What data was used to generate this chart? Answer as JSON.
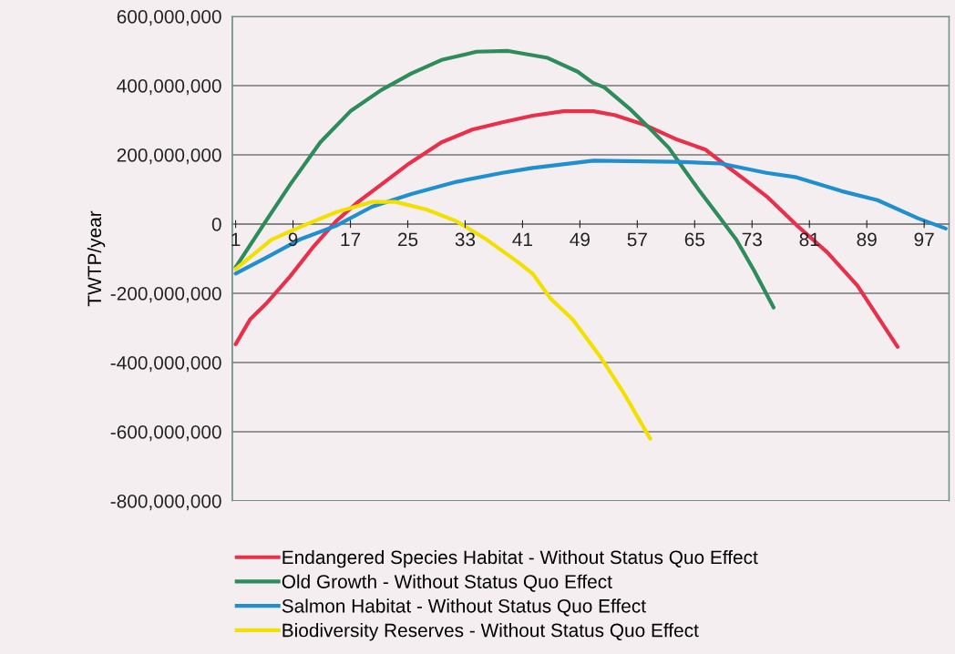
{
  "chart_data": {
    "type": "line",
    "ylabel": "TWTP/year",
    "xlim": [
      0.5,
      100.5
    ],
    "xticks": [
      1,
      9,
      17,
      25,
      33,
      41,
      49,
      57,
      65,
      73,
      81,
      89,
      97
    ],
    "ylim": [
      -800000000,
      600000000
    ],
    "yticks": [
      {
        "value": -800000000,
        "label": "-800,000,000"
      },
      {
        "value": -600000000,
        "label": "-600,000,000"
      },
      {
        "value": -400000000,
        "label": "-400,000,000"
      },
      {
        "value": -200000000,
        "label": "-200,000,000"
      },
      {
        "value": 0,
        "label": "0"
      },
      {
        "value": 200000000,
        "label": "200,000,000"
      },
      {
        "value": 400000000,
        "label": "400,000,000"
      },
      {
        "value": 600000000,
        "label": "600,000,000"
      }
    ],
    "grid": "y",
    "legend": "bottom",
    "series": [
      {
        "name": "Endangered Species Habitat - Without Status Quo Effect",
        "color": "#e8304a",
        "x": [
          1,
          3,
          5.2,
          8.6,
          11.9,
          15,
          17.9,
          21.3,
          25.2,
          29.7,
          34,
          38.2,
          42.4,
          46.7,
          50.9,
          53.8,
          58.1,
          62.3,
          66.5,
          69.5,
          72.4,
          75.2,
          79.2,
          83.5,
          87.7,
          90.8,
          93.3
        ],
        "values": [
          -347000000,
          -276000000,
          -231000000,
          -151000000,
          -64000000,
          8000000,
          61000000,
          114000000,
          175000000,
          236000000,
          273000000,
          294000000,
          313000000,
          326000000,
          326000000,
          315000000,
          286000000,
          246000000,
          215000000,
          167000000,
          122000000,
          77000000,
          -3000000,
          -82000000,
          -178000000,
          -276000000,
          -355000000
        ]
      },
      {
        "name": "Old Growth - Without Status Quo Effect",
        "color": "#2e8b5a",
        "x": [
          1,
          5.2,
          8.6,
          12.8,
          17,
          21.3,
          25.5,
          29.7,
          34.6,
          39,
          44.5,
          48.7,
          50.8,
          52.4,
          55.9,
          58.9,
          61.4,
          63.6,
          65.7,
          68.3,
          70.8,
          73.3,
          76
        ],
        "values": [
          -125000000,
          8000000,
          114000000,
          236000000,
          326000000,
          387000000,
          435000000,
          474000000,
          498000000,
          500000000,
          480000000,
          440000000,
          408000000,
          395000000,
          334000000,
          273000000,
          220000000,
          156000000,
          95000000,
          24000000,
          -45000000,
          -135000000,
          -241000000
        ]
      },
      {
        "name": "Salmon Habitat - Without Status Quo Effect",
        "color": "#1f8fd0",
        "x": [
          1,
          5.2,
          9.9,
          15,
          20,
          25.5,
          31.8,
          38.2,
          42.4,
          50.9,
          62.3,
          68.6,
          75,
          79.2,
          85.5,
          90.5,
          96.2,
          100
        ],
        "values": [
          -143000000,
          -98000000,
          -45000000,
          -5000000,
          50000000,
          87000000,
          122000000,
          148000000,
          162000000,
          183000000,
          180000000,
          175000000,
          148000000,
          135000000,
          95000000,
          69000000,
          16000000,
          -13000000
        ]
      },
      {
        "name": "Biodiversity Reserves - Without Status Quo Effect",
        "color": "#f2e000",
        "x": [
          1,
          6,
          10.6,
          15,
          20,
          23.3,
          27.6,
          31.8,
          36,
          40.3,
          42.4,
          44.9,
          48,
          51.8,
          55.1,
          58.8
        ],
        "values": [
          -130000000,
          -45000000,
          -3000000,
          34000000,
          64000000,
          64000000,
          42000000,
          8000000,
          -45000000,
          -109000000,
          -143000000,
          -215000000,
          -276000000,
          -382000000,
          -488000000,
          -620000000
        ]
      }
    ]
  }
}
